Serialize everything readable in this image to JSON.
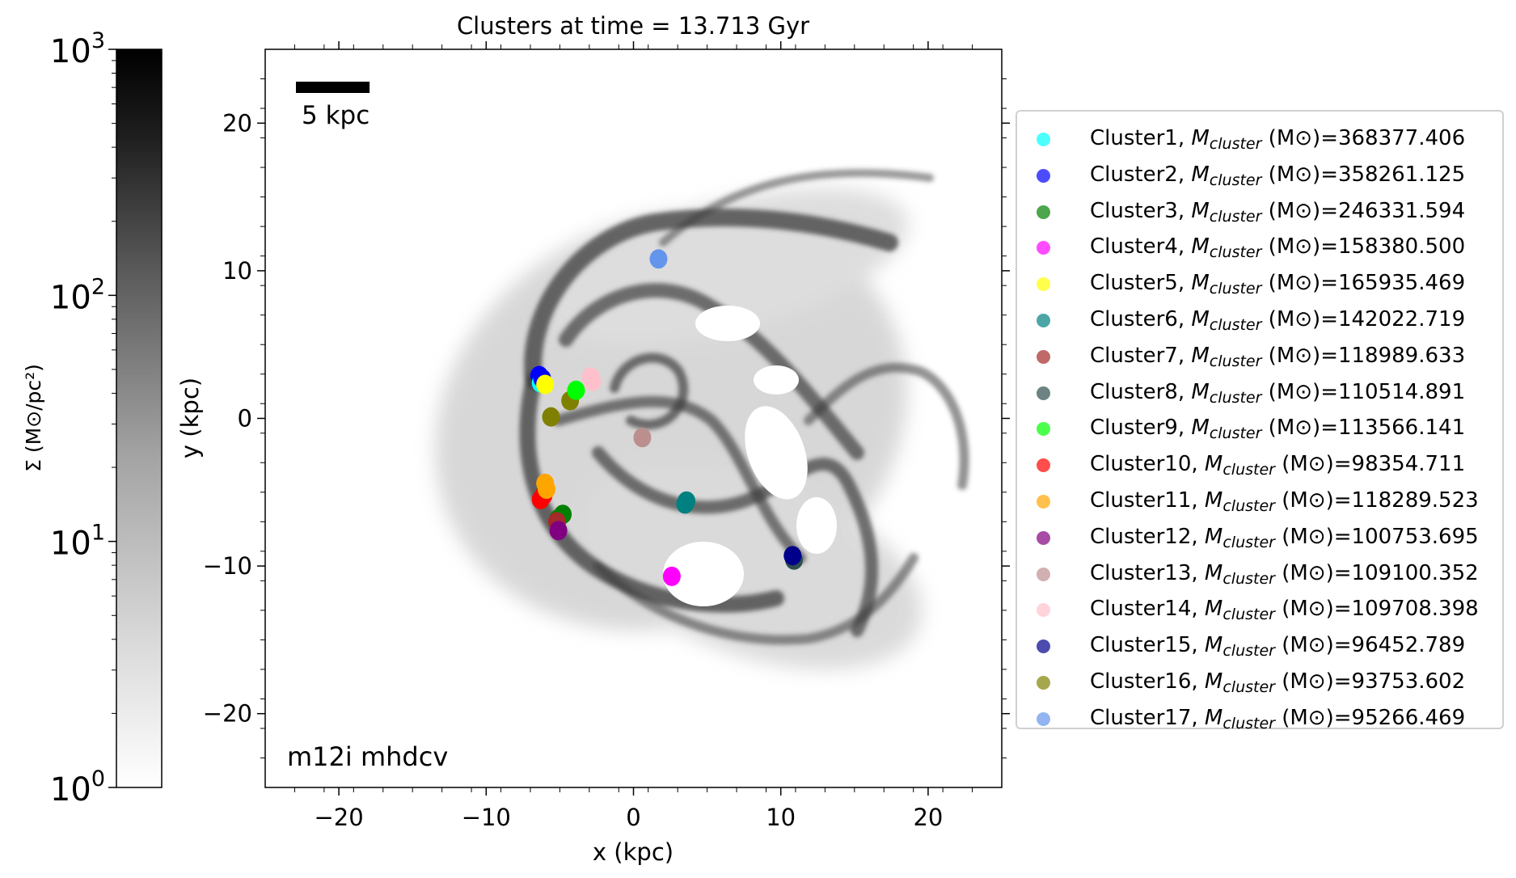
{
  "chart_data": {
    "type": "scatter",
    "title": "Clusters at time = 13.713 Gyr",
    "xlabel": "x (kpc)",
    "ylabel": "y (kpc)",
    "xlim": [
      -25,
      25
    ],
    "ylim": [
      -25,
      25
    ],
    "xticks": [
      -20,
      -10,
      0,
      10,
      20
    ],
    "yticks": [
      -20,
      -10,
      0,
      10,
      20
    ],
    "tick_labels": {
      "x": [
        "−20",
        "−10",
        "0",
        "10",
        "20"
      ],
      "y": [
        "−20",
        "−10",
        "0",
        "10",
        "20"
      ]
    },
    "annotation_scalebar": "5 kpc",
    "scalebar_length_kpc": 5,
    "annotation_label": "m12i mhdcv",
    "background": "gas surface density map (grayscale spiral galaxy)",
    "colorbar": {
      "label": "Σ (M⊙/pc²)",
      "scale": "log",
      "range": [
        1,
        1000
      ],
      "ticks": [
        {
          "base": "10",
          "exp": "0",
          "value": 1
        },
        {
          "base": "10",
          "exp": "1",
          "value": 10
        },
        {
          "base": "10",
          "exp": "2",
          "value": 100
        },
        {
          "base": "10",
          "exp": "3",
          "value": 1000
        }
      ]
    },
    "legend_position": "right",
    "series": [
      {
        "name": "Cluster1",
        "mass": "368377.406",
        "color": "#00FFFF",
        "x": -6.3,
        "y": 2.4
      },
      {
        "name": "Cluster2",
        "mass": "358261.125",
        "color": "#0000FF",
        "x": -6.2,
        "y": 2.7
      },
      {
        "name": "Cluster3",
        "mass": "246331.594",
        "color": "#008000",
        "x": -4.8,
        "y": -6.5
      },
      {
        "name": "Cluster4",
        "mass": "158380.500",
        "color": "#FF00FF",
        "x": 2.6,
        "y": -10.7
      },
      {
        "name": "Cluster5",
        "mass": "165935.469",
        "color": "#FFFF00",
        "x": -6.0,
        "y": 2.3
      },
      {
        "name": "Cluster6",
        "mass": "142022.719",
        "color": "#008080",
        "x": 3.5,
        "y": -5.8
      },
      {
        "name": "Cluster7",
        "mass": "118989.633",
        "color": "#A52A2A",
        "x": -5.2,
        "y": -7.0
      },
      {
        "name": "Cluster8",
        "mass": "110514.891",
        "color": "#2F4F4F",
        "x": 10.9,
        "y": -9.6
      },
      {
        "name": "Cluster9",
        "mass": "113566.141",
        "color": "#00FF00",
        "x": -3.9,
        "y": 1.9
      },
      {
        "name": "Cluster10",
        "mass": "98354.711",
        "color": "#FF0000",
        "x": -6.3,
        "y": -5.5
      },
      {
        "name": "Cluster11",
        "mass": "118289.523",
        "color": "#FFA500",
        "x": -5.9,
        "y": -4.8
      },
      {
        "name": "Cluster12",
        "mass": "100753.695",
        "color": "#800080",
        "x": -5.1,
        "y": -7.6
      },
      {
        "name": "Cluster13",
        "mass": "109100.352",
        "color": "#BC8F8F",
        "x": 0.6,
        "y": -1.3
      },
      {
        "name": "Cluster14",
        "mass": "109708.398",
        "color": "#FFC0CB",
        "x": -2.8,
        "y": 2.5
      },
      {
        "name": "Cluster15",
        "mass": "96452.789",
        "color": "#00008B",
        "x": 10.8,
        "y": -9.3
      },
      {
        "name": "Cluster16",
        "mass": "93753.602",
        "color": "#808000",
        "x": -5.6,
        "y": 0.1
      },
      {
        "name": "Cluster17",
        "mass": "95266.469",
        "color": "#6495ED",
        "x": 1.7,
        "y": 10.8
      }
    ],
    "extra_points": [
      {
        "color": "#808000",
        "x": -4.3,
        "y": 1.2
      },
      {
        "color": "#FF0000",
        "x": -6.1,
        "y": -5.2
      },
      {
        "color": "#FFA500",
        "x": -6.0,
        "y": -4.4
      },
      {
        "color": "#008000",
        "x": -5.1,
        "y": -6.8
      },
      {
        "color": "#008080",
        "x": 3.6,
        "y": -5.6
      },
      {
        "color": "#0000FF",
        "x": -6.4,
        "y": 2.9
      },
      {
        "color": "#FFC0CB",
        "x": -2.9,
        "y": 2.8
      }
    ]
  },
  "legend_text": {
    "separator": ", ",
    "M": "M",
    "sub": "cluster",
    "unit": " (M⊙)="
  }
}
